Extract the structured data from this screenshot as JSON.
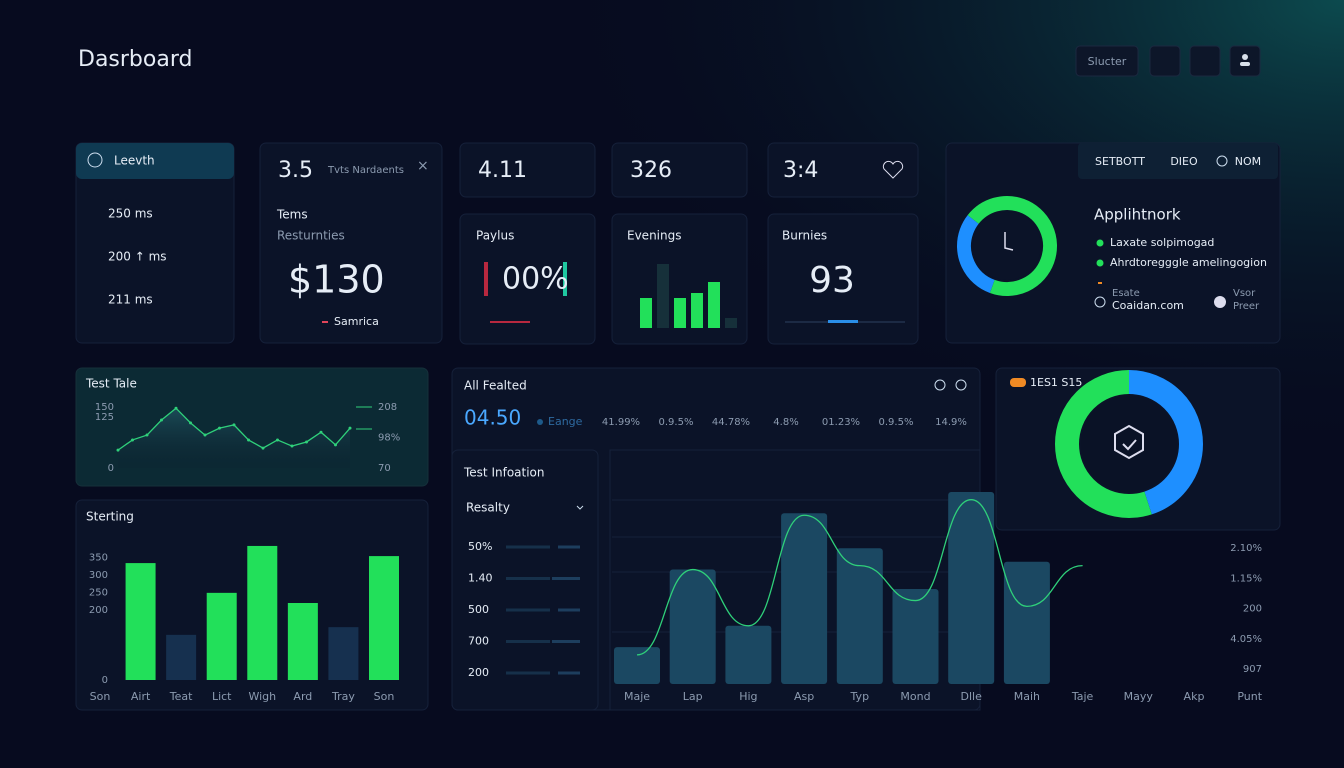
{
  "header": {
    "title": "Dasrboard",
    "search": "Slucter"
  },
  "sidebar": {
    "select": "Leevth",
    "items": [
      "250 ms",
      "200 ↑ ms",
      "211 ms"
    ]
  },
  "card_a": {
    "value": "3.5",
    "note": "Tvts Nardaents",
    "label": "Tems",
    "label2": "Resturnties",
    "big": "$130",
    "footer": "Samrica"
  },
  "card_b": {
    "value": "4.11",
    "label": "Paylus",
    "big": "00%"
  },
  "card_c": {
    "value": "326",
    "label": "Evenings"
  },
  "card_d": {
    "value": "3:4",
    "label": "Burnies",
    "big": "93"
  },
  "app_panel": {
    "tabs": [
      "SETBOTT",
      "DIEO",
      "NOM"
    ],
    "legend": [
      "Laxate solpimogad",
      "Ahrdtoregggle amelingogion"
    ],
    "footer_left": [
      "Esate",
      "Coaidan.com"
    ],
    "footer_right": [
      "Vsor",
      "Preer"
    ]
  },
  "middle": {
    "title": "All Fealted",
    "value": "04.50",
    "legend": "Eange",
    "columns": [
      "41.99%",
      "0.9.5%",
      "44.78%",
      "4.8%",
      "01.23%",
      "0.9.5%",
      "14.9%"
    ]
  },
  "info_panel": {
    "title": "Test Infoation",
    "select": "Resalty",
    "rows": [
      "50%",
      "1.40",
      "500",
      "700",
      "200"
    ]
  },
  "chart_data": [
    {
      "type": "donut",
      "title": "Applihtnork",
      "values": [
        30,
        70
      ],
      "colors": [
        "#1e8fff",
        "#22e05a"
      ]
    },
    {
      "type": "line",
      "title": "Test Tale",
      "values": [
        44,
        69,
        81,
        118,
        147,
        111,
        81,
        98,
        106,
        69,
        49,
        69,
        54,
        64,
        88,
        57,
        98
      ],
      "color": "#2fd07a",
      "ylim": [
        0,
        150
      ],
      "yticks": [
        0,
        125,
        150
      ],
      "right_labels": [
        "208",
        "98%",
        "70"
      ]
    },
    {
      "type": "bar",
      "title": "Sterting",
      "categories": [
        "Son",
        "Airt",
        "Teat",
        "Lict",
        "Wigh",
        "Ard",
        "Tray",
        "Son"
      ],
      "series": [
        {
          "color": "#16304f",
          "values": [
            null,
            null,
            129,
            null,
            null,
            null,
            151,
            null
          ]
        },
        {
          "color": "#22e05a",
          "values": [
            null,
            334,
            null,
            249,
            383,
            220,
            null,
            354
          ]
        }
      ],
      "ylim": [
        0,
        400
      ],
      "yticks": [
        0,
        200,
        250,
        300,
        350
      ]
    },
    {
      "type": "combo",
      "categories": [
        "Maje",
        "Lap",
        "Hig",
        "Asp",
        "Typ",
        "Mond",
        "Dlle",
        "Maih",
        "Taje",
        "Mayy",
        "Akp",
        "Punt"
      ],
      "series": [
        {
          "type": "bar",
          "color": "#1b4862",
          "values": [
            19,
            59,
            30,
            88,
            70,
            49,
            99,
            63,
            null,
            null,
            null,
            null
          ]
        },
        {
          "type": "line",
          "color": "#2fd07a",
          "values": [
            15,
            59,
            30,
            87,
            61,
            43,
            95,
            40,
            61,
            null,
            null,
            null
          ]
        }
      ],
      "ylim": [
        0,
        100
      ],
      "right_labels": [
        "2.10%",
        "1.15%",
        "200",
        "4.05%",
        "907"
      ]
    },
    {
      "type": "donut",
      "title": "1ES1 S15",
      "values": [
        45,
        55
      ],
      "colors": [
        "#1e8fff",
        "#22e05a"
      ]
    },
    {
      "type": "minibar",
      "values": [
        30,
        64,
        30,
        35,
        46,
        10
      ],
      "colors": [
        "#22e05a",
        "#16303a",
        "#22e05a",
        "#22e05a",
        "#22e05a",
        "#16303a"
      ],
      "ylim": [
        0,
        70
      ]
    }
  ]
}
